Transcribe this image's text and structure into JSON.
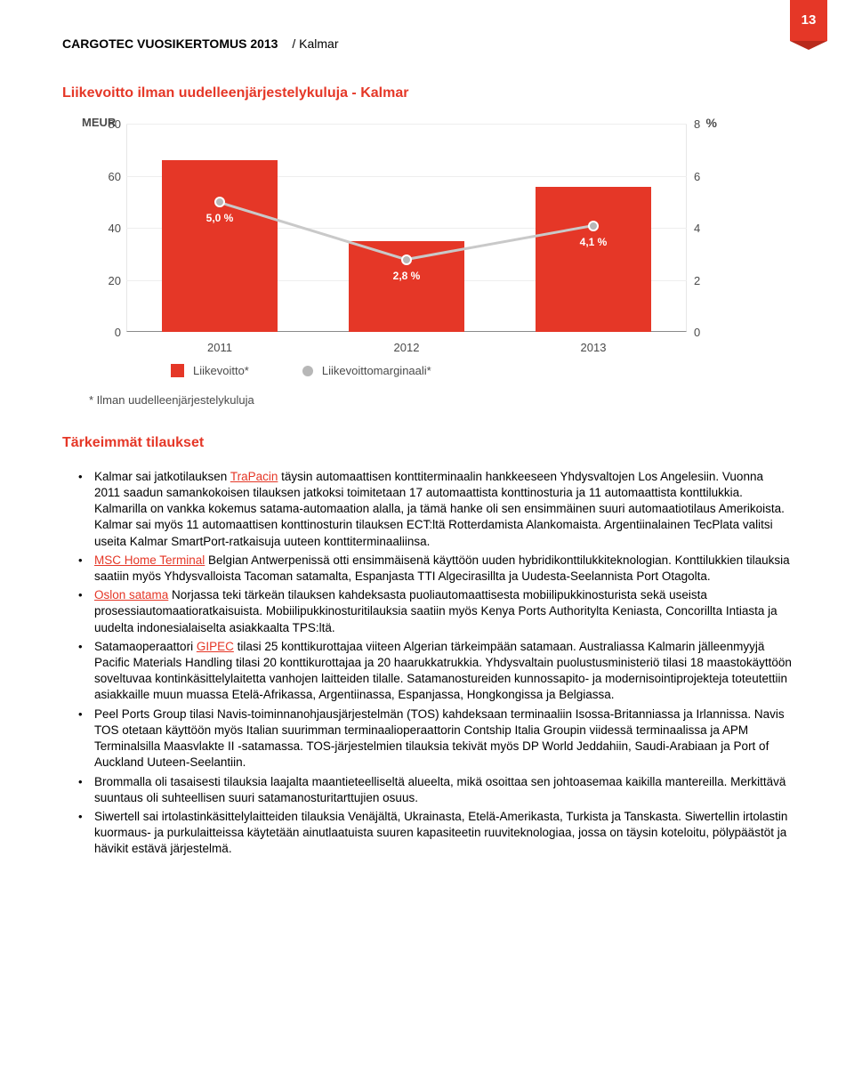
{
  "header": {
    "title": "CARGOTEC VUOSIKERTOMUS 2013",
    "section": "/ Kalmar",
    "page": "13"
  },
  "section_title": "Liikevoitto ilman uudelleenjärjestelykuluja - Kalmar",
  "chart": {
    "type": "bar+line",
    "left_label": "MEUR",
    "right_label": "%",
    "y_left": {
      "ticks": [
        "0",
        "20",
        "40",
        "60",
        "80"
      ],
      "max": 80
    },
    "y_right": {
      "ticks": [
        "0",
        "2",
        "4",
        "6",
        "8"
      ],
      "max": 8
    },
    "categories": [
      "2011",
      "2012",
      "2013"
    ],
    "bars": [
      66.0,
      35.0,
      56.0
    ],
    "bar_color": "#e53727",
    "line_pct": [
      5.0,
      2.8,
      4.1
    ],
    "line_labels": [
      "5,0 %",
      "2,8 %",
      "4,1 %"
    ],
    "marker_color": "#b7b7b7",
    "line_color": "#c9c9c9",
    "grid_color": "#eeeeee",
    "legend": {
      "bar": "Liikevoitto*",
      "line": "Liikevoittomarginaali*"
    },
    "footnote": "*   Ilman uudelleenjärjestelykuluja"
  },
  "orders_title": "Tärkeimmät tilaukset",
  "orders": [
    {
      "pre": "Kalmar sai jatkotilauksen ",
      "link": "TraPacin",
      "post": " täysin automaattisen konttiterminaalin hankkeeseen Yhdysvaltojen Los Angelesiin. Vuonna 2011 saadun samankokoisen tilauksen jatkoksi toimitetaan 17 automaattista konttinosturia ja 11 automaattista konttilukkia. Kalmarilla on vankka kokemus satama-automaation alalla, ja tämä hanke oli sen ensimmäinen suuri automaatiotilaus Amerikoista. Kalmar sai myös 11 automaattisen konttinosturin tilauksen ECT:ltä Rotterdamista Alankomaista. Argentiinalainen TecPlata valitsi useita Kalmar SmartPort-ratkaisuja uuteen konttiterminaaliinsa."
    },
    {
      "pre": "",
      "link": "MSC Home Terminal",
      "post": " Belgian Antwerpenissä otti ensimmäisenä käyttöön uuden hybridikonttilukkiteknologian. Konttilukkien tilauksia saatiin myös Yhdysvalloista Tacoman satamalta, Espanjasta TTI Algecirasillta ja Uudesta-Seelannista Port Otagolta."
    },
    {
      "pre": "",
      "link": "Oslon satama",
      "post": " Norjassa teki tärkeän tilauksen kahdeksasta puoliautomaattisesta mobiilipukkinosturista sekä useista prosessiautomaatioratkaisuista. Mobiilipukkinosturitilauksia saatiin myös Kenya Ports Authoritylta Keniasta, Concorillta Intiasta ja uudelta indonesialaiselta asiakkaalta TPS:ltä."
    },
    {
      "pre": "Satamaoperaattori ",
      "link": "GIPEC",
      "post": " tilasi 25 konttikurottajaa viiteen Algerian tärkeimpään satamaan. Australiassa Kalmarin jälleenmyyjä Pacific Materials Handling tilasi 20 konttikurottajaa ja 20 haarukkatrukkia. Yhdysvaltain puolustusministeriö tilasi 18 maastokäyttöön soveltuvaa kontinkäsittelylaitetta vanhojen laitteiden tilalle. Satamanostureiden kunnossapito- ja modernisointiprojekteja toteutettiin asiakkaille muun muassa Etelä-Afrikassa, Argentiinassa, Espanjassa, Hongkongissa ja Belgiassa."
    },
    {
      "pre": "Peel Ports Group tilasi Navis-toiminnanohjausjärjestelmän (TOS) kahdeksaan terminaaliin Isossa-Britanniassa ja Irlannissa. Navis TOS otetaan käyttöön myös Italian suurimman terminaalioperaattorin Contship Italia Groupin viidessä terminaalissa ja APM Terminalsilla Maasvlakte II -satamassa. TOS-järjestelmien tilauksia tekivät myös DP World Jeddahiin, Saudi-Arabiaan ja Port of Auckland Uuteen-Seelantiin.",
      "link": "",
      "post": ""
    },
    {
      "pre": "Brommalla oli tasaisesti tilauksia laajalta maantieteelliseltä alueelta, mikä osoittaa sen johtoasemaa kaikilla mantereilla. Merkittävä suuntaus oli suhteellisen suuri satamanosturitarttujien osuus.",
      "link": "",
      "post": ""
    },
    {
      "pre": "Siwertell sai irtolastinkäsittelylaitteiden tilauksia Venäjältä, Ukrainasta, Etelä-Amerikasta, Turkista ja Tanskasta. Siwertellin irtolastin kuormaus- ja purkulaitteissa käytetään ainutlaatuista suuren kapasiteetin ruuviteknologiaa, jossa on täysin koteloitu, pölypäästöt ja hävikit estävä järjestelmä.",
      "link": "",
      "post": ""
    }
  ]
}
